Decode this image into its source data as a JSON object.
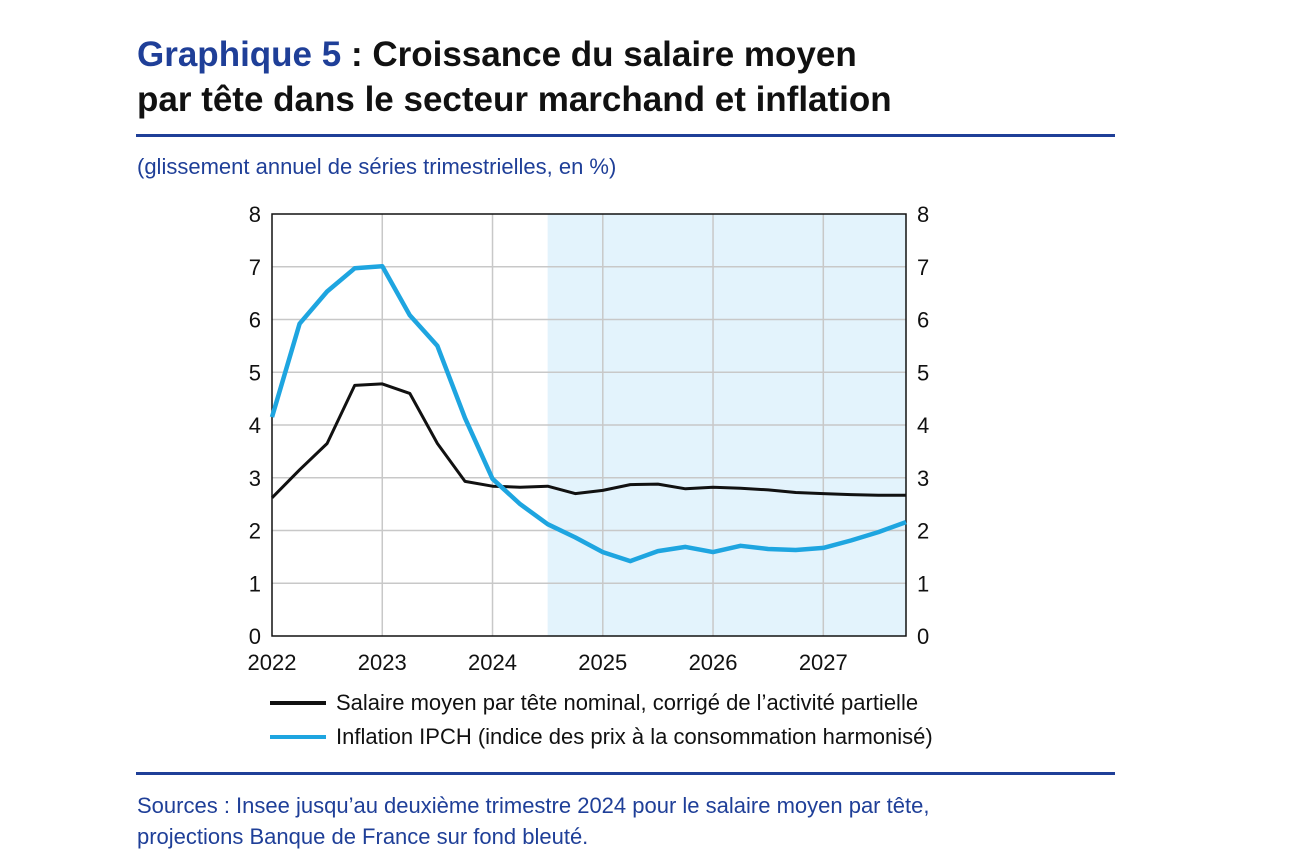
{
  "header": {
    "title_prefix": "Graphique 5",
    "title_sep": " : ",
    "title_line1": "Croissance du salaire moyen",
    "title_line2": "par tête dans le secteur marchand et inflation",
    "subtitle": "(glissement annuel de séries trimestrielles, en %)"
  },
  "footer": {
    "sources_line1": "Sources : Insee jusqu’au deuxième trimestre 2024 pour le salaire moyen par tête,",
    "sources_line2": "projections Banque de France sur fond bleuté."
  },
  "colors": {
    "accent": "#1f3f98",
    "projection_bg": "#e3f3fc",
    "wage": "#111111",
    "inflation": "#1ea5e0",
    "grid": "#c8c8c8"
  },
  "chart_data": {
    "type": "line",
    "xlim": [
      2022,
      2027.75
    ],
    "ylim": [
      0,
      8
    ],
    "yticks": [
      0,
      1,
      2,
      3,
      4,
      5,
      6,
      7,
      8
    ],
    "xticks": [
      2022,
      2023,
      2024,
      2025,
      2026,
      2027
    ],
    "xtick_labels": [
      "2022",
      "2023",
      "2024",
      "2025",
      "2026",
      "2027"
    ],
    "grid": true,
    "dual_y_axis": true,
    "legend_position": "bottom",
    "projection_shading": {
      "from": 2024.5,
      "to": 2027.75
    },
    "x": [
      2022,
      2022.25,
      2022.5,
      2022.75,
      2023,
      2023.25,
      2023.5,
      2023.75,
      2024,
      2024.25,
      2024.5,
      2024.75,
      2025,
      2025.25,
      2025.5,
      2025.75,
      2026,
      2026.25,
      2026.5,
      2026.75,
      2027,
      2027.25,
      2027.5,
      2027.75
    ],
    "series": [
      {
        "name": "Salaire moyen par tête nominal, corrigé de l’activité partielle",
        "color": "#111111",
        "values": [
          2.62,
          3.15,
          3.65,
          4.75,
          4.78,
          4.6,
          3.65,
          2.93,
          2.84,
          2.82,
          2.84,
          2.7,
          2.76,
          2.87,
          2.88,
          2.79,
          2.82,
          2.8,
          2.77,
          2.72,
          2.7,
          2.68,
          2.67,
          2.67
        ]
      },
      {
        "name": "Inflation IPCH (indice des prix à la consommation harmonisé)",
        "color": "#1ea5e0",
        "values": [
          4.15,
          5.92,
          6.53,
          6.97,
          7.01,
          6.08,
          5.5,
          4.13,
          2.98,
          2.5,
          2.12,
          1.87,
          1.59,
          1.42,
          1.61,
          1.69,
          1.59,
          1.71,
          1.65,
          1.63,
          1.67,
          1.81,
          1.97,
          2.16
        ]
      }
    ]
  }
}
